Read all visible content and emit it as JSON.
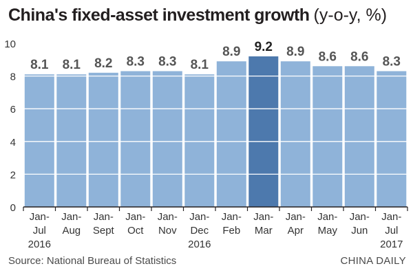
{
  "header": {
    "title": "China's fixed-asset investment growth",
    "unit": "(y-o-y, %)"
  },
  "footer": {
    "source": "Source: National Bureau of Statistics",
    "credit": "CHINA DAILY"
  },
  "colors": {
    "bar": "#8fb3d9",
    "highlight": "#4d79ad",
    "label": "#555555",
    "highlight_label": "#222222",
    "grid": "#ffffff",
    "axis": "#231f20"
  },
  "chart_data": {
    "type": "bar",
    "title": "China's fixed-asset investment growth (y-o-y, %)",
    "xlabel": "",
    "ylabel": "",
    "categories": [
      "Jan-Jul 2016",
      "Jan-Aug",
      "Jan-Sept",
      "Jan-Oct",
      "Jan-Nov",
      "Jan-Dec 2016",
      "Jan-Feb",
      "Jan-Mar",
      "Jan-Apr",
      "Jan-May",
      "Jan-Jun",
      "Jan-Jul 2017"
    ],
    "category_lines": [
      [
        "Jan-",
        "Jul",
        "2016"
      ],
      [
        "Jan-",
        "Aug"
      ],
      [
        "Jan-",
        "Sept"
      ],
      [
        "Jan-",
        "Oct"
      ],
      [
        "Jan-",
        "Nov"
      ],
      [
        "Jan-",
        "Dec",
        "2016"
      ],
      [
        "Jan-",
        "Feb"
      ],
      [
        "Jan-",
        "Mar"
      ],
      [
        "Jan-",
        "Apr"
      ],
      [
        "Jan-",
        "May"
      ],
      [
        "Jan-",
        "Jun"
      ],
      [
        "Jan-",
        "Jul",
        "2017"
      ]
    ],
    "values": [
      8.1,
      8.1,
      8.2,
      8.3,
      8.3,
      8.1,
      8.9,
      9.2,
      8.9,
      8.6,
      8.6,
      8.3
    ],
    "data_labels": [
      "8.1",
      "8.1",
      "8.2",
      "8.3",
      "8.3",
      "8.1",
      "8.9",
      "9.2",
      "8.9",
      "8.6",
      "8.6",
      "8.3"
    ],
    "highlight_category": "Jan-Mar",
    "ylim": [
      0,
      10
    ],
    "yticks": [
      0,
      2,
      4,
      6,
      8,
      10
    ],
    "grid": true,
    "legend": "none"
  }
}
